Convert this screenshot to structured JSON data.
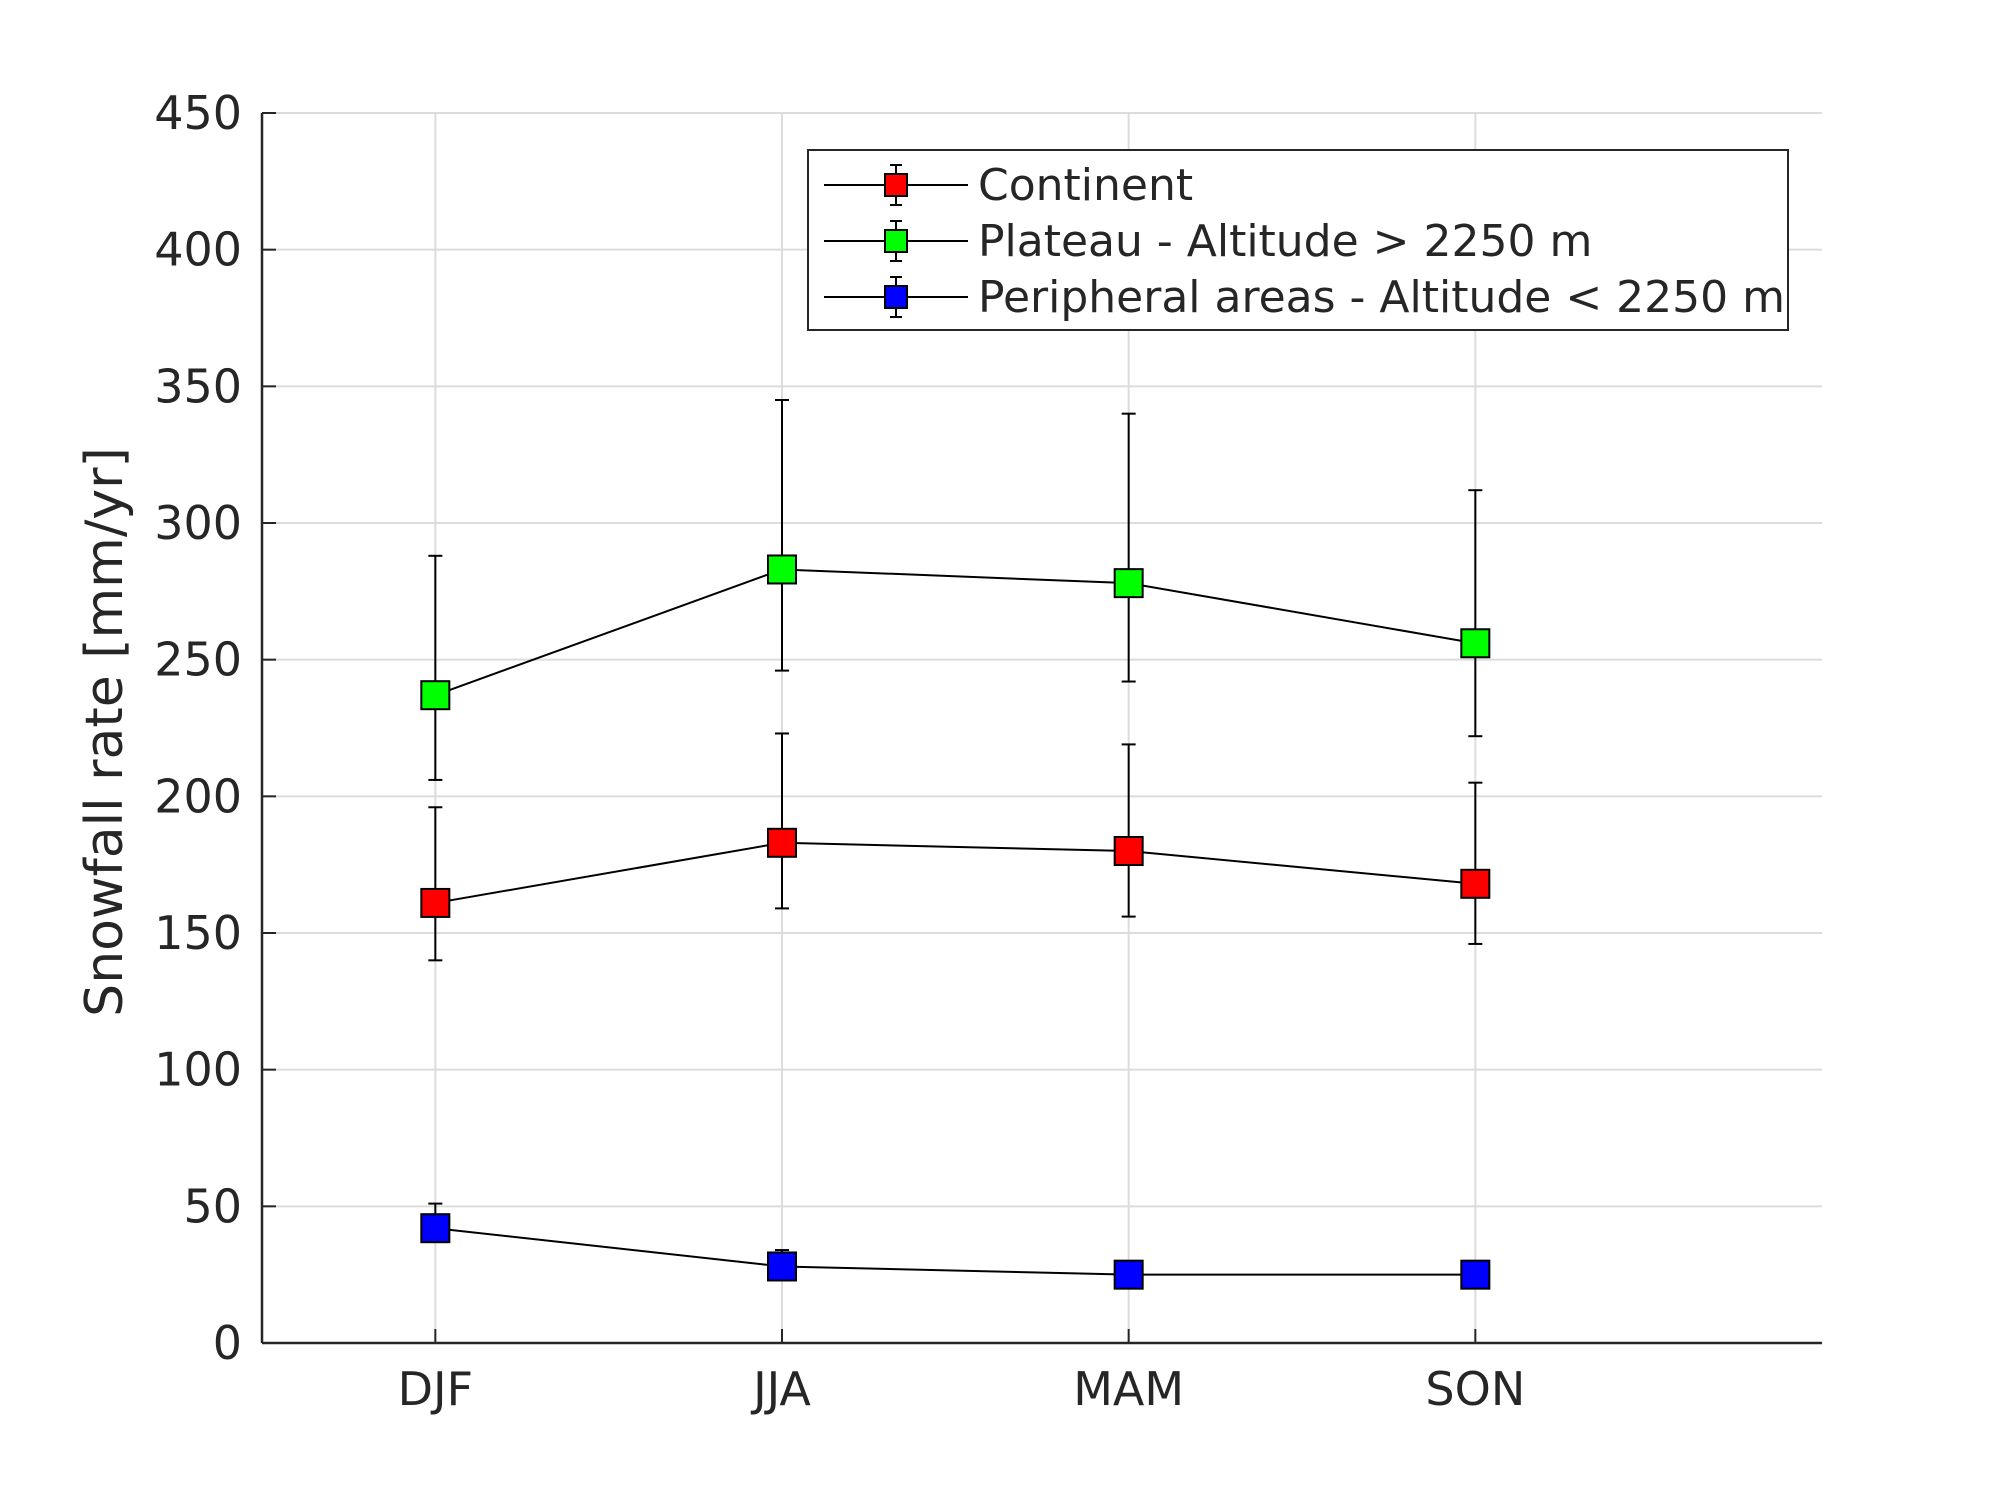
{
  "chart_data": {
    "type": "line",
    "title": "",
    "xlabel": "",
    "ylabel": "Snowfall rate [mm/yr]",
    "categories": [
      "DJF",
      "JJA",
      "MAM",
      "SON"
    ],
    "x_range": [
      0.5,
      5.0
    ],
    "ylim": [
      0,
      450
    ],
    "y_ticks": [
      0,
      50,
      100,
      150,
      200,
      250,
      300,
      350,
      400,
      450
    ],
    "grid": true,
    "legend_position": "top-right",
    "series": [
      {
        "name": "Continent",
        "color": "#ff0000",
        "values": [
          161,
          183,
          180,
          168
        ],
        "err_low": [
          140,
          159,
          156,
          146
        ],
        "err_high": [
          196,
          223,
          219,
          205
        ]
      },
      {
        "name": "Plateau - Altitude > 2250 m",
        "color": "#00ff00",
        "values": [
          237,
          283,
          278,
          256
        ],
        "err_low": [
          206,
          246,
          242,
          222
        ],
        "err_high": [
          288,
          345,
          340,
          312
        ]
      },
      {
        "name": "Peripheral areas - Altitude < 2250 m",
        "color": "#0000ff",
        "values": [
          42,
          28,
          25,
          25
        ],
        "err_low": [
          37,
          23,
          21,
          21
        ],
        "err_high": [
          51,
          34,
          29,
          29
        ]
      }
    ]
  }
}
